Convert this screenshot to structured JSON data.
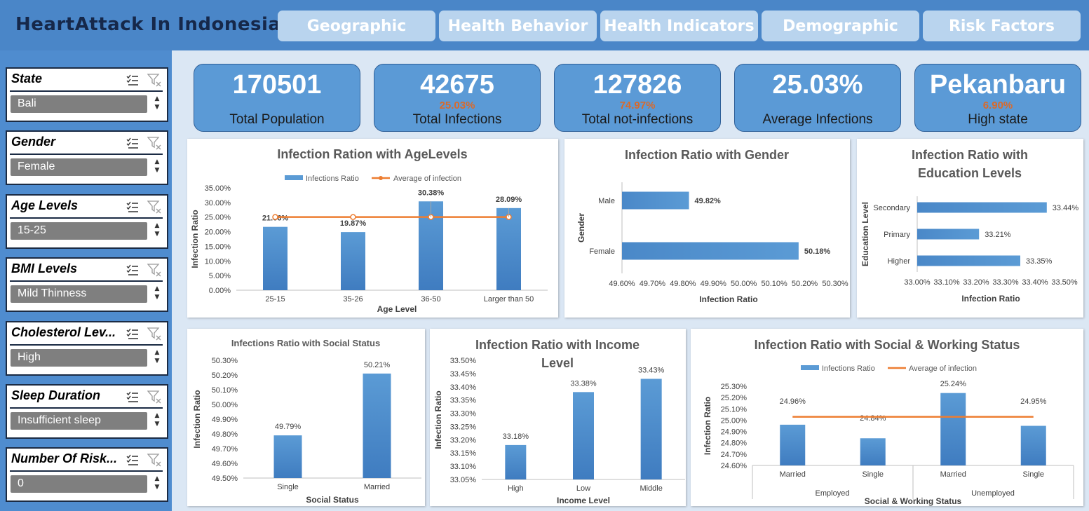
{
  "app": {
    "title": "HeartAttack In Indonesia"
  },
  "tabs": [
    {
      "label": "Geographic"
    },
    {
      "label": "Health Behavior"
    },
    {
      "label": "Health Indicators"
    },
    {
      "label": "Demographic"
    },
    {
      "label": "Risk Factors"
    }
  ],
  "slicers": [
    {
      "title": "State",
      "selected": "Bali"
    },
    {
      "title": "Gender",
      "selected": "Female"
    },
    {
      "title": "Age Levels",
      "selected": "15-25"
    },
    {
      "title": "BMI Levels",
      "selected": "Mild Thinness"
    },
    {
      "title": "Cholesterol Lev...",
      "selected": "High"
    },
    {
      "title": "Sleep Duration",
      "selected": "Insufficient sleep"
    },
    {
      "title": "Number Of Risk...",
      "selected": "0"
    }
  ],
  "kpis": [
    {
      "value": "170501",
      "percent": "",
      "label": "Total Population"
    },
    {
      "value": "42675",
      "percent": "25.03%",
      "label": "Total Infections"
    },
    {
      "value": "127826",
      "percent": "74.97%",
      "label": "Total not-infections"
    },
    {
      "value": "25.03%",
      "percent": "",
      "label": "Average Infections"
    },
    {
      "value": "Pekanbaru",
      "percent": "6.90%",
      "label": "High state"
    }
  ],
  "colors": {
    "bar": "#5b9bd5",
    "line": "#ed7d31",
    "kpi_bg": "#5b9ad6",
    "sidebar": "#4f8ccf",
    "topbar": "#4a86c8"
  },
  "chart_data": [
    {
      "type": "bar",
      "title": "Infection Ration with AgeLevels",
      "xlabel": "Age Level",
      "ylabel": "Infection Ratio",
      "categories": [
        "25-15",
        "35-26",
        "36-50",
        "Larger than 50"
      ],
      "series": [
        {
          "name": "Infections Ratio",
          "values": [
            21.66,
            19.87,
            30.38,
            28.09
          ]
        },
        {
          "name": "Average of infection",
          "values": [
            25.03,
            25.03,
            25.03,
            25.03
          ]
        }
      ],
      "data_labels": [
        "21.66%",
        "19.87%",
        "30.38%",
        "28.09%"
      ],
      "yticks": [
        "0.00%",
        "5.00%",
        "10.00%",
        "15.00%",
        "20.00%",
        "25.00%",
        "30.00%",
        "35.00%"
      ],
      "ylim": [
        0,
        35
      ]
    },
    {
      "type": "bar",
      "orientation": "horizontal",
      "title": "Infection Ratio with Gender",
      "xlabel": "Infection Ratio",
      "ylabel": "Gender",
      "categories": [
        "Male",
        "Female"
      ],
      "values": [
        49.82,
        50.18
      ],
      "data_labels": [
        "49.82%",
        "50.18%"
      ],
      "xticks": [
        "49.60%",
        "49.70%",
        "49.80%",
        "49.90%",
        "50.00%",
        "50.10%",
        "50.20%",
        "50.30%"
      ],
      "xlim": [
        49.6,
        50.3
      ]
    },
    {
      "type": "bar",
      "orientation": "horizontal",
      "title": "Infection Ratio with Education Levels",
      "title_lines": [
        "Infection Ratio with",
        "Education Levels"
      ],
      "xlabel": "Infection Ratio",
      "ylabel": "Education Level",
      "categories": [
        "Secondary",
        "Primary",
        "Higher"
      ],
      "values": [
        33.44,
        33.21,
        33.35
      ],
      "data_labels": [
        "33.44%",
        "33.21%",
        "33.35%"
      ],
      "xticks": [
        "33.00%",
        "33.10%",
        "33.20%",
        "33.30%",
        "33.40%",
        "33.50%"
      ],
      "xlim": [
        33.0,
        33.5
      ]
    },
    {
      "type": "bar",
      "title": "Infections Ratio with Social Status",
      "xlabel": "Social Status",
      "ylabel": "Infection Ratio",
      "categories": [
        "Single",
        "Married"
      ],
      "values": [
        49.79,
        50.21
      ],
      "data_labels": [
        "49.79%",
        "50.21%"
      ],
      "yticks": [
        "49.50%",
        "49.60%",
        "49.70%",
        "49.80%",
        "49.90%",
        "50.00%",
        "50.10%",
        "50.20%",
        "50.30%"
      ],
      "ylim": [
        49.5,
        50.3
      ]
    },
    {
      "type": "bar",
      "title": "Infection Ratio with Income Level",
      "title_lines": [
        "Infection Ratio with Income",
        "Level"
      ],
      "xlabel": "Income Level",
      "ylabel": "Infection Ratio",
      "categories": [
        "High",
        "Low",
        "Middle"
      ],
      "values": [
        33.18,
        33.38,
        33.43
      ],
      "data_labels": [
        "33.18%",
        "33.38%",
        "33.43%"
      ],
      "yticks": [
        "33.05%",
        "33.10%",
        "33.15%",
        "33.20%",
        "33.25%",
        "33.30%",
        "33.35%",
        "33.40%",
        "33.45%",
        "33.50%"
      ],
      "ylim": [
        33.05,
        33.5
      ]
    },
    {
      "type": "bar",
      "title": "Infection Ratio with Social & Working Status",
      "xlabel": "Social & Working Status",
      "ylabel": "Infection Ratio",
      "categories": [
        "Married",
        "Single",
        "Married",
        "Single"
      ],
      "groups": [
        "Employed",
        "Unemployed"
      ],
      "series": [
        {
          "name": "Infections Ratio",
          "values": [
            24.96,
            24.84,
            25.24,
            24.95
          ]
        },
        {
          "name": "Average of infection",
          "values": [
            25.03,
            25.03,
            25.03,
            25.03
          ]
        }
      ],
      "data_labels": [
        "24.96%",
        "24.84%",
        "25.24%",
        "24.95%"
      ],
      "yticks": [
        "24.60%",
        "24.70%",
        "24.80%",
        "24.90%",
        "25.00%",
        "25.10%",
        "25.20%",
        "25.30%"
      ],
      "ylim": [
        24.6,
        25.3
      ]
    }
  ]
}
